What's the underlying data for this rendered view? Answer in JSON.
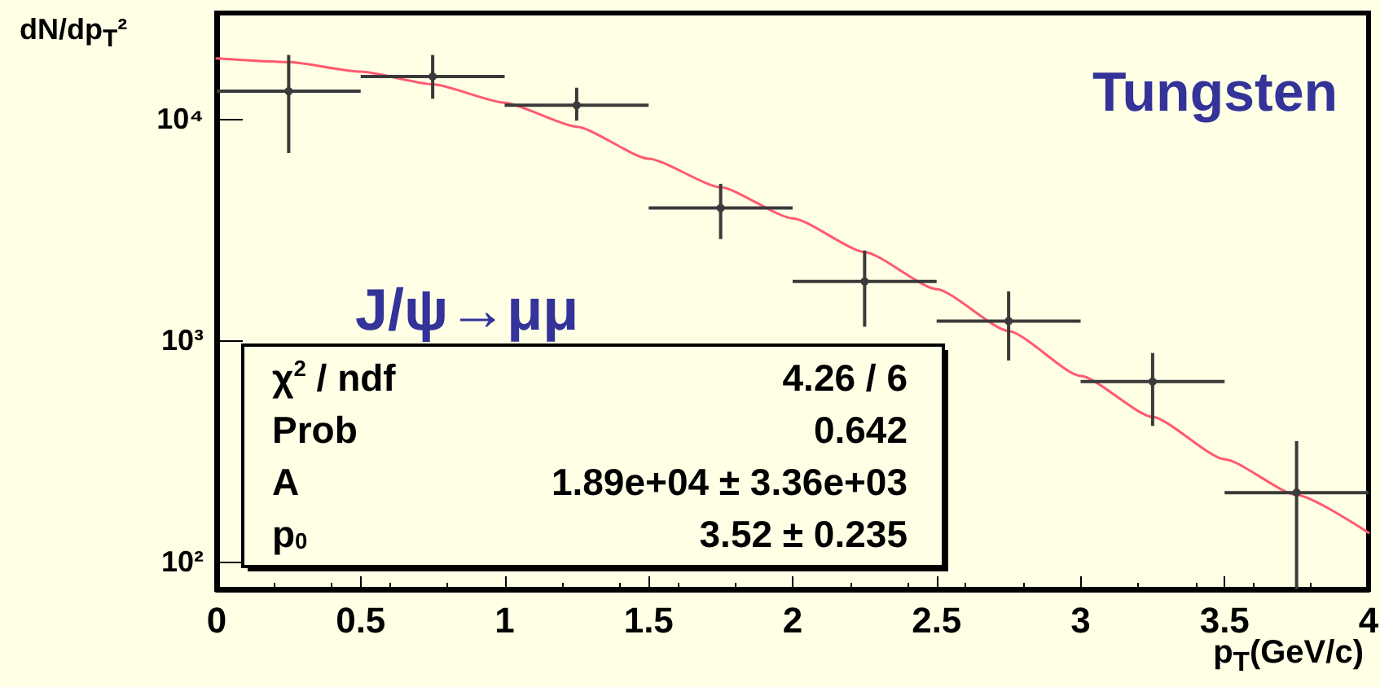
{
  "chart_data": {
    "type": "scatter",
    "xlabel": "p$_{T}$(GeV/c)",
    "ylabel": "dN/dp$_{T}$²",
    "annotations": [
      "Tungsten",
      "J/ψ→μμ",
      "χ$^{2}$ / ndf",
      "4.26 / 6",
      "Prob",
      "0.642",
      "A",
      "1.89e+04 ± 3.36e+03",
      "p$_{0}$",
      "3.52 ± 0.235"
    ],
    "log": "y",
    "xlim": [
      0,
      4
    ],
    "xticks": [
      0,
      0.5,
      1,
      1.5,
      2,
      2.5,
      3,
      3.5,
      4
    ],
    "ylim": [
      75,
      30000
    ],
    "yticks": [
      {
        "value": 100,
        "label": "10²"
      },
      {
        "value": 1000,
        "label": "10³"
      },
      {
        "value": 10000,
        "label": "10⁴"
      }
    ],
    "grid": false,
    "series": [
      {
        "color": "#3a3a3a",
        "x": [
          0.25,
          0.75,
          1.25,
          1.75,
          2.25,
          2.75,
          3.25,
          3.75
        ],
        "values": [
          13300,
          15500,
          11500,
          3950,
          1840,
          1220,
          650,
          205
        ],
        "errors": [
          [
            7000,
            19400
          ],
          [
            12300,
            19400
          ],
          [
            9800,
            13800
          ],
          [
            2860,
            5080
          ],
          [
            1150,
            2540
          ],
          [
            810,
            1660
          ],
          [
            410,
            875
          ],
          [
            75,
            350
          ]
        ],
        "xerrors": [
          0.25,
          0.25,
          0.25,
          0.25,
          0.25,
          0.25,
          0.25,
          0.25
        ]
      },
      {
        "type": "line",
        "color": "#ff5a6e",
        "marker": "none",
        "x": [
          0,
          0.25,
          0.5,
          0.75,
          1,
          1.25,
          1.5,
          1.75,
          2,
          2.25,
          2.5,
          2.75,
          3,
          3.25,
          3.5,
          3.75,
          4
        ],
        "values": [
          18700,
          18000,
          16300,
          14300,
          11800,
          9200,
          6600,
          4900,
          3550,
          2500,
          1700,
          1100,
          690,
          450,
          290,
          200,
          135
        ]
      }
    ]
  }
}
